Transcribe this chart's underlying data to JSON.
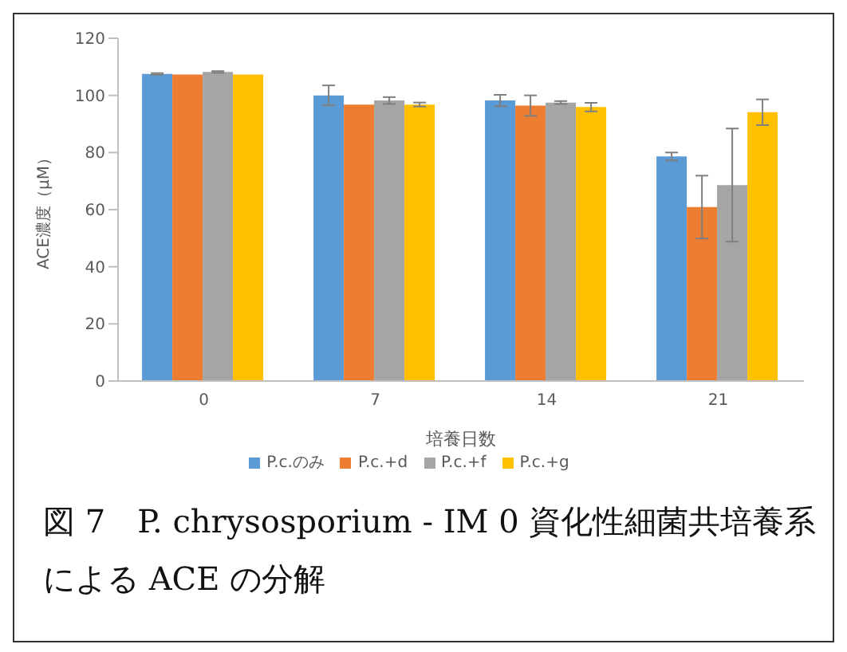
{
  "chart_data": {
    "type": "bar",
    "xlabel": "培養日数",
    "ylabel": "ACE濃度（μM）",
    "categories": [
      "0",
      "7",
      "14",
      "21"
    ],
    "series": [
      {
        "name": "P.c.のみ",
        "color": "#5b9bd5",
        "values": [
          107.5,
          100,
          98.2,
          78.6
        ],
        "errors": [
          0.3,
          3.5,
          2,
          1.4
        ]
      },
      {
        "name": "P.c.+d",
        "color": "#ed7d31",
        "values": [
          107.3,
          96.8,
          96.4,
          60.9
        ],
        "errors": [
          null,
          null,
          3.6,
          11
        ]
      },
      {
        "name": "P.c.+f",
        "color": "#a5a5a5",
        "values": [
          108.2,
          98.2,
          97.5,
          68.6
        ],
        "errors": [
          0.3,
          1.2,
          0.5,
          19.8
        ]
      },
      {
        "name": "P.c.+g",
        "color": "#ffc000",
        "values": [
          107.3,
          96.8,
          95.9,
          94.1
        ],
        "errors": [
          null,
          0.7,
          1.5,
          4.5
        ]
      }
    ],
    "ylim": [
      0,
      120
    ],
    "yticks": [
      0,
      20,
      40,
      60,
      80,
      100,
      120
    ],
    "grid": false,
    "legend": "bottom",
    "annotations": [
      "図 7　P. chrysosporium - IM 0 資化性細菌共培養系による ACE の分解"
    ]
  }
}
